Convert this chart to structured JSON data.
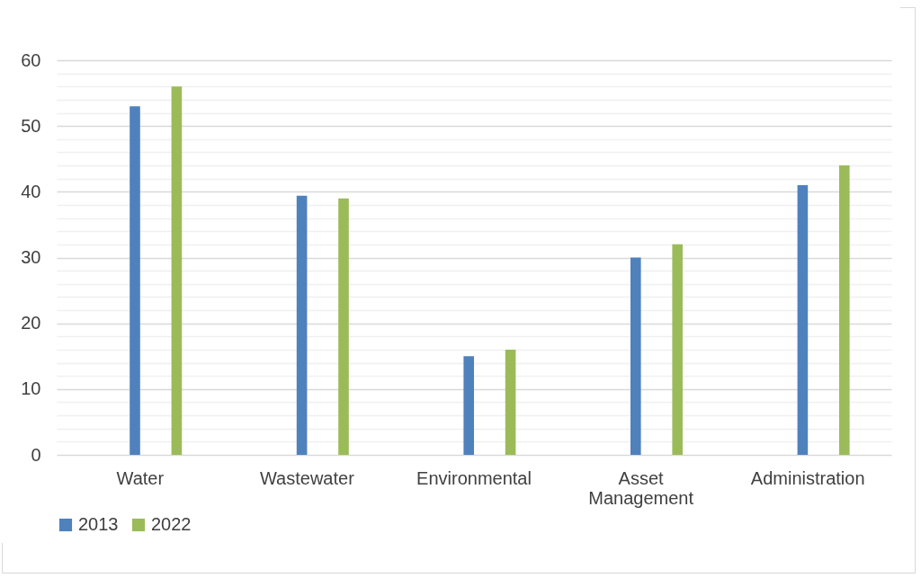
{
  "chart_data": {
    "type": "bar",
    "categories": [
      "Water",
      "Wastewater",
      "Environmental",
      "Asset Management",
      "Administration"
    ],
    "series": [
      {
        "name": "2013",
        "color": "#4f81bd",
        "values": [
          53,
          39.4,
          15,
          30,
          41
        ]
      },
      {
        "name": "2022",
        "color": "#9bbb59",
        "values": [
          56,
          39,
          16,
          32,
          44
        ]
      }
    ],
    "ylim": [
      0,
      60
    ],
    "yticks": [
      0,
      {
        "value": 2,
        "label": null
      },
      {
        "value": 4,
        "label": null
      },
      {
        "value": 6,
        "label": null
      },
      {
        "value": 8,
        "label": null
      },
      10,
      {
        "value": 12,
        "label": null
      },
      {
        "value": 14,
        "label": null
      },
      {
        "value": 16,
        "label": null
      },
      {
        "value": 18,
        "label": null
      },
      20,
      {
        "value": 22,
        "label": null
      },
      {
        "value": 24,
        "label": null
      },
      {
        "value": 26,
        "label": null
      },
      {
        "value": 28,
        "label": null
      },
      30,
      {
        "value": 32,
        "label": null
      },
      {
        "value": 34,
        "label": null
      },
      {
        "value": 36,
        "label": null
      },
      {
        "value": 38,
        "label": null
      },
      40,
      {
        "value": 42,
        "label": null
      },
      {
        "value": 44,
        "label": null
      },
      {
        "value": 46,
        "label": null
      },
      {
        "value": 48,
        "label": null
      },
      50,
      {
        "value": 52,
        "label": null
      },
      {
        "value": 54,
        "label": null
      },
      {
        "value": 56,
        "label": null
      },
      {
        "value": 58,
        "label": null
      },
      60
    ],
    "grid": true,
    "legend": "bottom"
  }
}
